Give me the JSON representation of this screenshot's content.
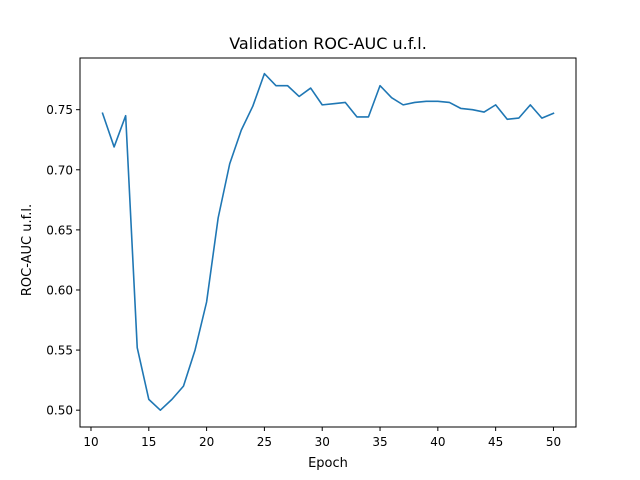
{
  "chart_data": {
    "type": "line",
    "title": "Validation ROC-AUC u.f.l.",
    "xlabel": "Epoch",
    "ylabel": "ROC-AUC u.f.l.",
    "xlim": [
      9.05,
      51.95
    ],
    "ylim": [
      0.486,
      0.793
    ],
    "xticks": [
      10,
      15,
      20,
      25,
      30,
      35,
      40,
      45,
      50
    ],
    "xtick_labels": [
      "10",
      "15",
      "20",
      "25",
      "30",
      "35",
      "40",
      "45",
      "50"
    ],
    "yticks": [
      0.5,
      0.55,
      0.6,
      0.65,
      0.7,
      0.75
    ],
    "ytick_labels": [
      "0.50",
      "0.55",
      "0.60",
      "0.65",
      "0.70",
      "0.75"
    ],
    "grid": false,
    "series": [
      {
        "color": "#1f77b4",
        "x": [
          11,
          12,
          13,
          14,
          15,
          16,
          17,
          18,
          19,
          20,
          21,
          22,
          23,
          24,
          25,
          26,
          27,
          28,
          29,
          30,
          31,
          32,
          33,
          34,
          35,
          36,
          37,
          38,
          39,
          40,
          41,
          42,
          43,
          44,
          45,
          46,
          47,
          48,
          49,
          50
        ],
        "y": [
          0.747,
          0.719,
          0.745,
          0.552,
          0.509,
          0.5,
          0.509,
          0.52,
          0.55,
          0.59,
          0.66,
          0.705,
          0.733,
          0.753,
          0.78,
          0.77,
          0.77,
          0.761,
          0.768,
          0.754,
          0.755,
          0.756,
          0.744,
          0.744,
          0.77,
          0.76,
          0.754,
          0.756,
          0.757,
          0.757,
          0.756,
          0.751,
          0.75,
          0.748,
          0.754,
          0.742,
          0.743,
          0.754,
          0.743,
          0.747
        ]
      }
    ]
  }
}
